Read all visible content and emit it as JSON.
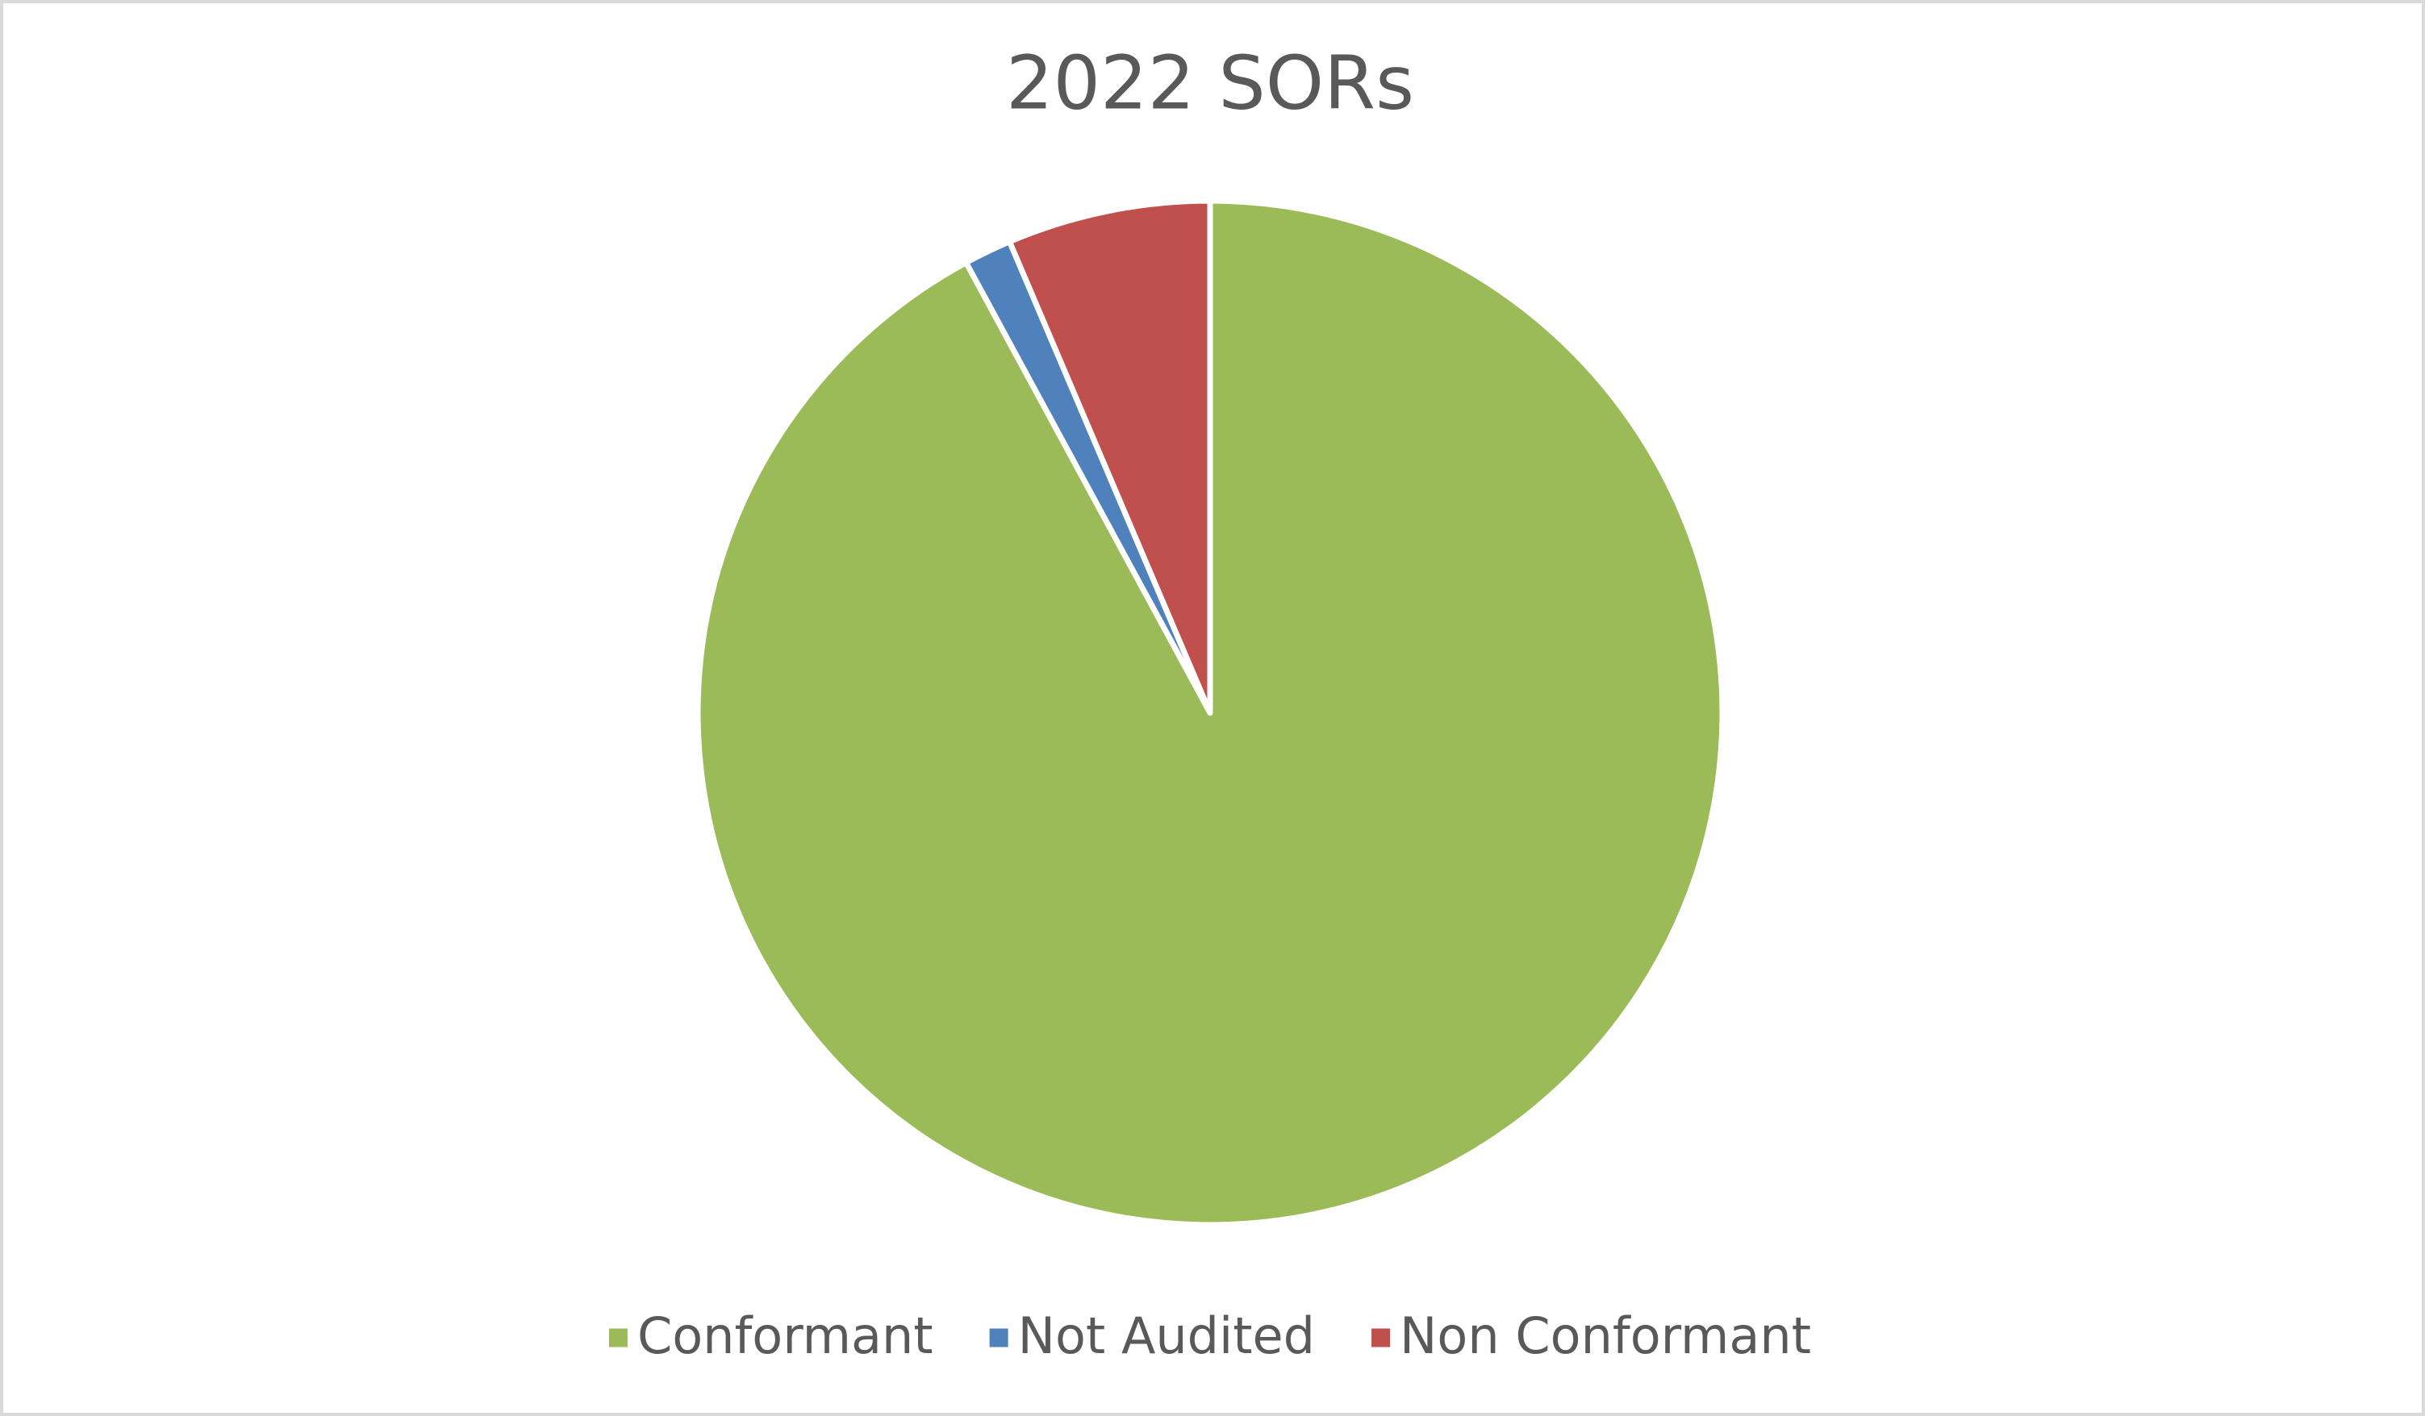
{
  "chart_data": {
    "type": "pie",
    "title": "2022 SORs",
    "categories": [
      "Conformant",
      "Not Audited",
      "Non Conformant"
    ],
    "values": [
      92.1,
      1.5,
      6.4
    ],
    "colors": [
      "#9bbb59",
      "#4f81bd",
      "#c0504d"
    ],
    "legend": "bottom"
  }
}
